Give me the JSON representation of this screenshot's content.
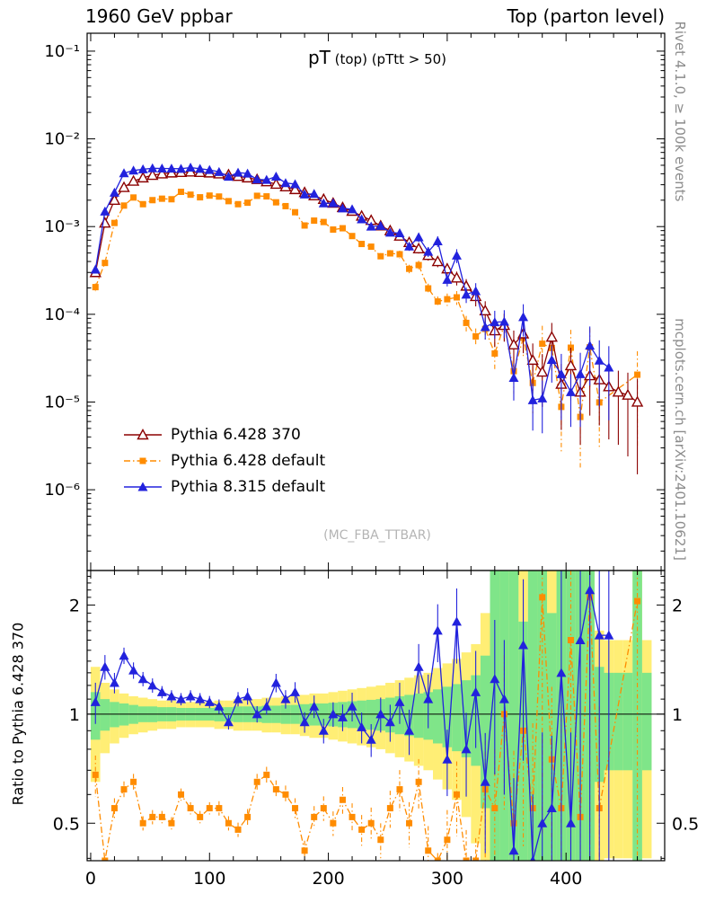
{
  "header": {
    "left": "1960 GeV ppbar",
    "right": "Top (parton level)"
  },
  "title": {
    "main": "pT",
    "sub": " (top) (pTtt > 50)"
  },
  "watermark": "(MC_FBA_TTBAR)",
  "side_labels": {
    "right_top": "Rivet 4.1.0, ≥ 100k events",
    "right_bottom": "mcplots.cern.ch [arXiv:2401.10621]",
    "ratio_ylabel": "Ratio to Pythia 6.428 370"
  },
  "legend": [
    {
      "label": "Pythia 6.428 370",
      "color": "#8b0000",
      "marker": "triangle-open",
      "line": "solid"
    },
    {
      "label": "Pythia 6.428 default",
      "color": "#ff8c00",
      "marker": "square",
      "line": "dashdot"
    },
    {
      "label": "Pythia 8.315 default",
      "color": "#2222dd",
      "marker": "triangle",
      "line": "solid"
    }
  ],
  "colors": {
    "band_green": "#7fe589",
    "band_yellow": "#ffee75",
    "frame": "#000000",
    "gray_text": "#8c8c8c"
  },
  "chart_data": {
    "type": "scatter",
    "title": "pT (top) (pTtt > 50)",
    "xlabel": "",
    "ylabel_ratio": "Ratio to Pythia 6.428 370",
    "axes": {
      "x": {
        "lim": [
          -3,
          483
        ],
        "major": [
          0,
          100,
          200,
          300,
          400
        ],
        "minor_step": 20,
        "labels": [
          "0",
          "100",
          "200",
          "300",
          "400"
        ]
      },
      "y_top": {
        "scale": "log",
        "lim": [
          1.2e-07,
          0.16
        ],
        "decades": [
          -1,
          -2,
          -3,
          -4,
          -5,
          -6
        ],
        "labels": [
          "10⁻¹",
          "10⁻²",
          "10⁻³",
          "10⁻⁴",
          "10⁻⁵",
          "10⁻⁶"
        ]
      },
      "y_ratio": {
        "scale": "log",
        "lim": [
          0.394,
          2.49
        ],
        "major": [
          0.5,
          1,
          2
        ],
        "labels": [
          "0.5",
          "1",
          "2"
        ],
        "minor": [
          0.4,
          0.6,
          0.7,
          0.8,
          0.9,
          1.1,
          1.2,
          1.3,
          1.4,
          1.5,
          1.6,
          1.7,
          1.8,
          1.9,
          2.1,
          2.2,
          2.3,
          2.4
        ]
      }
    },
    "bin_width": 8,
    "x": [
      4,
      12,
      20,
      28,
      36,
      44,
      52,
      60,
      68,
      76,
      84,
      92,
      100,
      108,
      116,
      124,
      132,
      140,
      148,
      156,
      164,
      172,
      180,
      188,
      196,
      204,
      212,
      220,
      228,
      236,
      244,
      252,
      260,
      268,
      276,
      284,
      292,
      300,
      308,
      316,
      324,
      332,
      340,
      348,
      356,
      364,
      372,
      380,
      388,
      396,
      404,
      412,
      420,
      428,
      436,
      444,
      452,
      460,
      468
    ],
    "err_rel": [
      0.1,
      0.06,
      0.05,
      0.04,
      0.04,
      0.035,
      0.035,
      0.03,
      0.03,
      0.03,
      0.03,
      0.03,
      0.03,
      0.035,
      0.035,
      0.035,
      0.04,
      0.04,
      0.04,
      0.045,
      0.045,
      0.05,
      0.05,
      0.055,
      0.06,
      0.06,
      0.065,
      0.07,
      0.075,
      0.08,
      0.085,
      0.09,
      0.1,
      0.11,
      0.12,
      0.13,
      0.14,
      0.16,
      0.18,
      0.2,
      0.23,
      0.28,
      0.35,
      0.35,
      0.45,
      0.4,
      0.55,
      0.6,
      0.45,
      0.7,
      0.6,
      0.75,
      0.65,
      0.7,
      0.75,
      0.75,
      0.8,
      0.85,
      0.85
    ],
    "series": [
      {
        "name": "Pythia 6.428 370",
        "role": "reference",
        "color": "#8b0000",
        "marker": "triangle-open",
        "line": "solid",
        "values": [
          0.0003,
          0.0011,
          0.002,
          0.0028,
          0.0033,
          0.0036,
          0.00385,
          0.004,
          0.0041,
          0.00415,
          0.0042,
          0.00415,
          0.0041,
          0.004,
          0.0039,
          0.00375,
          0.0036,
          0.00345,
          0.00325,
          0.00305,
          0.00285,
          0.00265,
          0.00245,
          0.00225,
          0.00205,
          0.00185,
          0.00165,
          0.0015,
          0.00132,
          0.00118,
          0.00102,
          0.0009,
          0.00078,
          0.00066,
          0.00056,
          0.00047,
          0.0004,
          0.00033,
          0.00026,
          0.00021,
          0.00016,
          0.00011,
          6.5e-05,
          7.5e-05,
          4.5e-05,
          6e-05,
          3e-05,
          2.2e-05,
          5.5e-05,
          1.6e-05,
          2.6e-05,
          1.3e-05,
          2e-05,
          1.8e-05,
          1.5e-05,
          1.3e-05,
          1.2e-05,
          1e-05,
          null
        ]
      },
      {
        "name": "Pythia 6.428 default",
        "color": "#ff8c00",
        "marker": "square",
        "line": "dashdot",
        "ratio_to_reference": [
          0.68,
          0.35,
          0.55,
          0.62,
          0.65,
          0.5,
          0.52,
          0.52,
          0.5,
          0.6,
          0.55,
          0.52,
          0.55,
          0.55,
          0.5,
          0.48,
          0.52,
          0.65,
          0.68,
          0.62,
          0.6,
          0.55,
          0.42,
          0.52,
          0.55,
          0.5,
          0.58,
          0.52,
          0.48,
          0.5,
          0.45,
          0.55,
          0.62,
          0.5,
          0.65,
          0.42,
          0.35,
          0.45,
          0.6,
          0.38,
          0.35,
          0.62,
          0.55,
          1.0,
          0.5,
          0.9,
          0.55,
          2.1,
          0.75,
          0.55,
          1.6,
          0.52,
          2.1,
          0.55,
          null,
          null,
          null,
          2.05,
          null
        ]
      },
      {
        "name": "Pythia 8.315 default",
        "color": "#2222dd",
        "marker": "triangle",
        "line": "solid",
        "ratio_to_reference": [
          1.08,
          1.35,
          1.22,
          1.45,
          1.32,
          1.25,
          1.2,
          1.15,
          1.12,
          1.1,
          1.12,
          1.1,
          1.08,
          1.05,
          0.95,
          1.1,
          1.12,
          1.0,
          1.05,
          1.22,
          1.1,
          1.15,
          0.95,
          1.05,
          0.9,
          1.0,
          0.98,
          1.05,
          0.92,
          0.85,
          1.0,
          0.95,
          1.08,
          0.9,
          1.35,
          1.1,
          1.7,
          0.75,
          1.8,
          0.8,
          1.15,
          0.65,
          1.25,
          1.1,
          0.42,
          1.55,
          0.35,
          0.5,
          0.55,
          1.3,
          0.5,
          1.6,
          2.2,
          1.65,
          1.65,
          null,
          null,
          null,
          null
        ]
      }
    ],
    "ratio_bands": {
      "description": "half-widths around 1.0",
      "green": [
        0.15,
        0.1,
        0.08,
        0.07,
        0.06,
        0.05,
        0.05,
        0.045,
        0.045,
        0.04,
        0.04,
        0.04,
        0.04,
        0.045,
        0.045,
        0.05,
        0.05,
        0.05,
        0.055,
        0.055,
        0.06,
        0.06,
        0.065,
        0.07,
        0.07,
        0.075,
        0.08,
        0.085,
        0.09,
        0.095,
        0.1,
        0.11,
        0.12,
        0.13,
        0.14,
        0.15,
        0.17,
        0.19,
        0.21,
        0.24,
        0.28,
        0.45,
        1.5,
        1.5,
        1.5,
        0.8,
        1.5,
        1.5,
        0.9,
        1.5,
        1.5,
        1.5,
        1.5,
        0.35,
        0.3,
        0.3,
        0.3,
        1.5,
        0.3
      ],
      "yellow": [
        0.35,
        0.22,
        0.17,
        0.14,
        0.12,
        0.11,
        0.1,
        0.09,
        0.09,
        0.08,
        0.08,
        0.08,
        0.08,
        0.09,
        0.09,
        0.1,
        0.1,
        0.1,
        0.11,
        0.11,
        0.12,
        0.12,
        0.13,
        0.14,
        0.14,
        0.15,
        0.16,
        0.17,
        0.18,
        0.19,
        0.2,
        0.22,
        0.24,
        0.26,
        0.28,
        0.3,
        0.34,
        0.38,
        0.42,
        0.48,
        0.56,
        0.9,
        1.5,
        1.5,
        1.5,
        1.5,
        1.5,
        1.5,
        1.5,
        1.5,
        1.5,
        1.5,
        1.5,
        0.7,
        0.6,
        0.6,
        0.6,
        1.5,
        0.6
      ]
    }
  }
}
